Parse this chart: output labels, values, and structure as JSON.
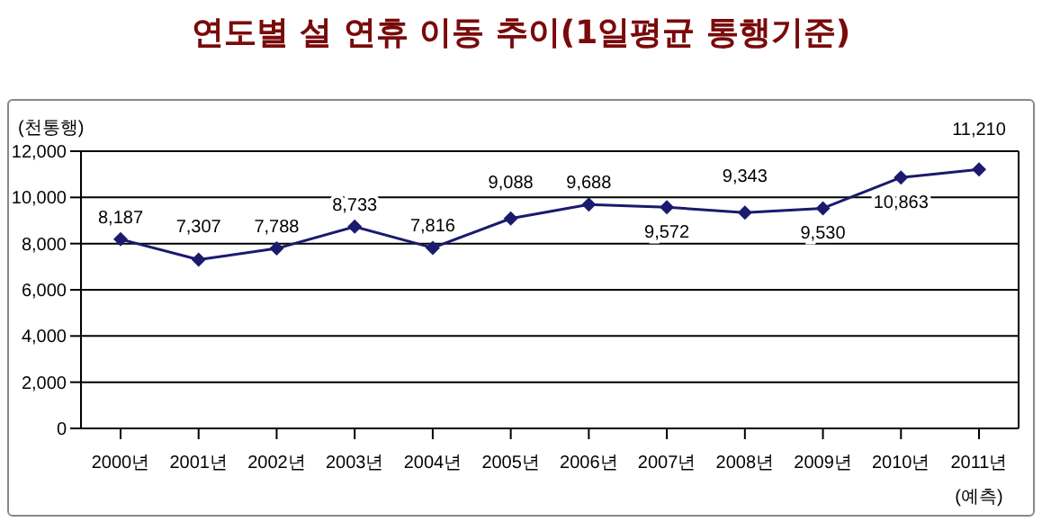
{
  "chart_data": {
    "type": "line",
    "title": "연도별 설 연휴 이동 추이(1일평균 통행기준)",
    "ylabel": "(천통행)",
    "categories": [
      "2000년",
      "2001년",
      "2002년",
      "2003년",
      "2004년",
      "2005년",
      "2006년",
      "2007년",
      "2008년",
      "2009년",
      "2010년",
      "2011년"
    ],
    "series": [
      {
        "color": "#1a1a6e",
        "values": [
          8187,
          7307,
          7788,
          8733,
          7816,
          9088,
          9688,
          9572,
          9343,
          9530,
          10863,
          11210
        ],
        "value_labels": [
          "8,187",
          "7,307",
          "7,788",
          "8,733",
          "7,816",
          "9,088",
          "9,688",
          "9,572",
          "9,343",
          "9,530",
          "10,863",
          "11,210"
        ]
      }
    ],
    "ylim": [
      0,
      12000
    ],
    "yticks": [
      {
        "value": 0,
        "label": "0"
      },
      {
        "value": 2000,
        "label": "2,000"
      },
      {
        "value": 4000,
        "label": "4,000"
      },
      {
        "value": 6000,
        "label": "6,000"
      },
      {
        "value": 8000,
        "label": "8,000"
      },
      {
        "value": 10000,
        "label": "10,000"
      },
      {
        "value": 12000,
        "label": "12,000"
      }
    ],
    "grid": "y",
    "marker": "diamond",
    "line_style": "solid",
    "legend": false,
    "annotations": [
      "(예측)"
    ]
  }
}
